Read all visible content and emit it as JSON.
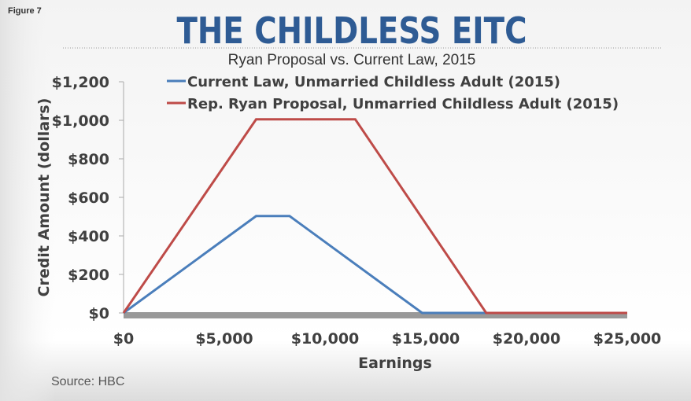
{
  "figure_label": "Figure 7",
  "source": "Source: HBC",
  "chart_data": {
    "type": "line",
    "title": "THE CHILDLESS EITC",
    "subtitle": "Ryan Proposal vs. Current Law, 2015",
    "xlabel": "Earnings",
    "ylabel": "Credit Amount (dollars)",
    "xlim": [
      0,
      25000
    ],
    "ylim": [
      0,
      1200
    ],
    "x_ticks": [
      0,
      5000,
      10000,
      15000,
      20000,
      25000
    ],
    "x_tick_labels": [
      "$0",
      "$5,000",
      "$10,000",
      "$15,000",
      "$20,000",
      "$25,000"
    ],
    "y_ticks": [
      0,
      200,
      400,
      600,
      800,
      1000,
      1200
    ],
    "y_tick_labels": [
      "$0",
      "$200",
      "$400",
      "$600",
      "$800",
      "$1,000",
      "$1,200"
    ],
    "grid": false,
    "legend_position": "top",
    "series": [
      {
        "name": "Current Law, Unmarried Childless Adult (2015)",
        "color": "#4a7ebb",
        "points": [
          [
            0,
            0
          ],
          [
            6580,
            503
          ],
          [
            8240,
            503
          ],
          [
            14820,
            0
          ],
          [
            25000,
            0
          ]
        ]
      },
      {
        "name": "Rep. Ryan Proposal, Unmarried Childless Adult (2015)",
        "color": "#be4b48",
        "points": [
          [
            0,
            0
          ],
          [
            6580,
            1005
          ],
          [
            11500,
            1005
          ],
          [
            18000,
            0
          ],
          [
            25000,
            0
          ]
        ]
      }
    ]
  },
  "colors": {
    "title": "#2e5b94",
    "axis_band": "#999999"
  }
}
